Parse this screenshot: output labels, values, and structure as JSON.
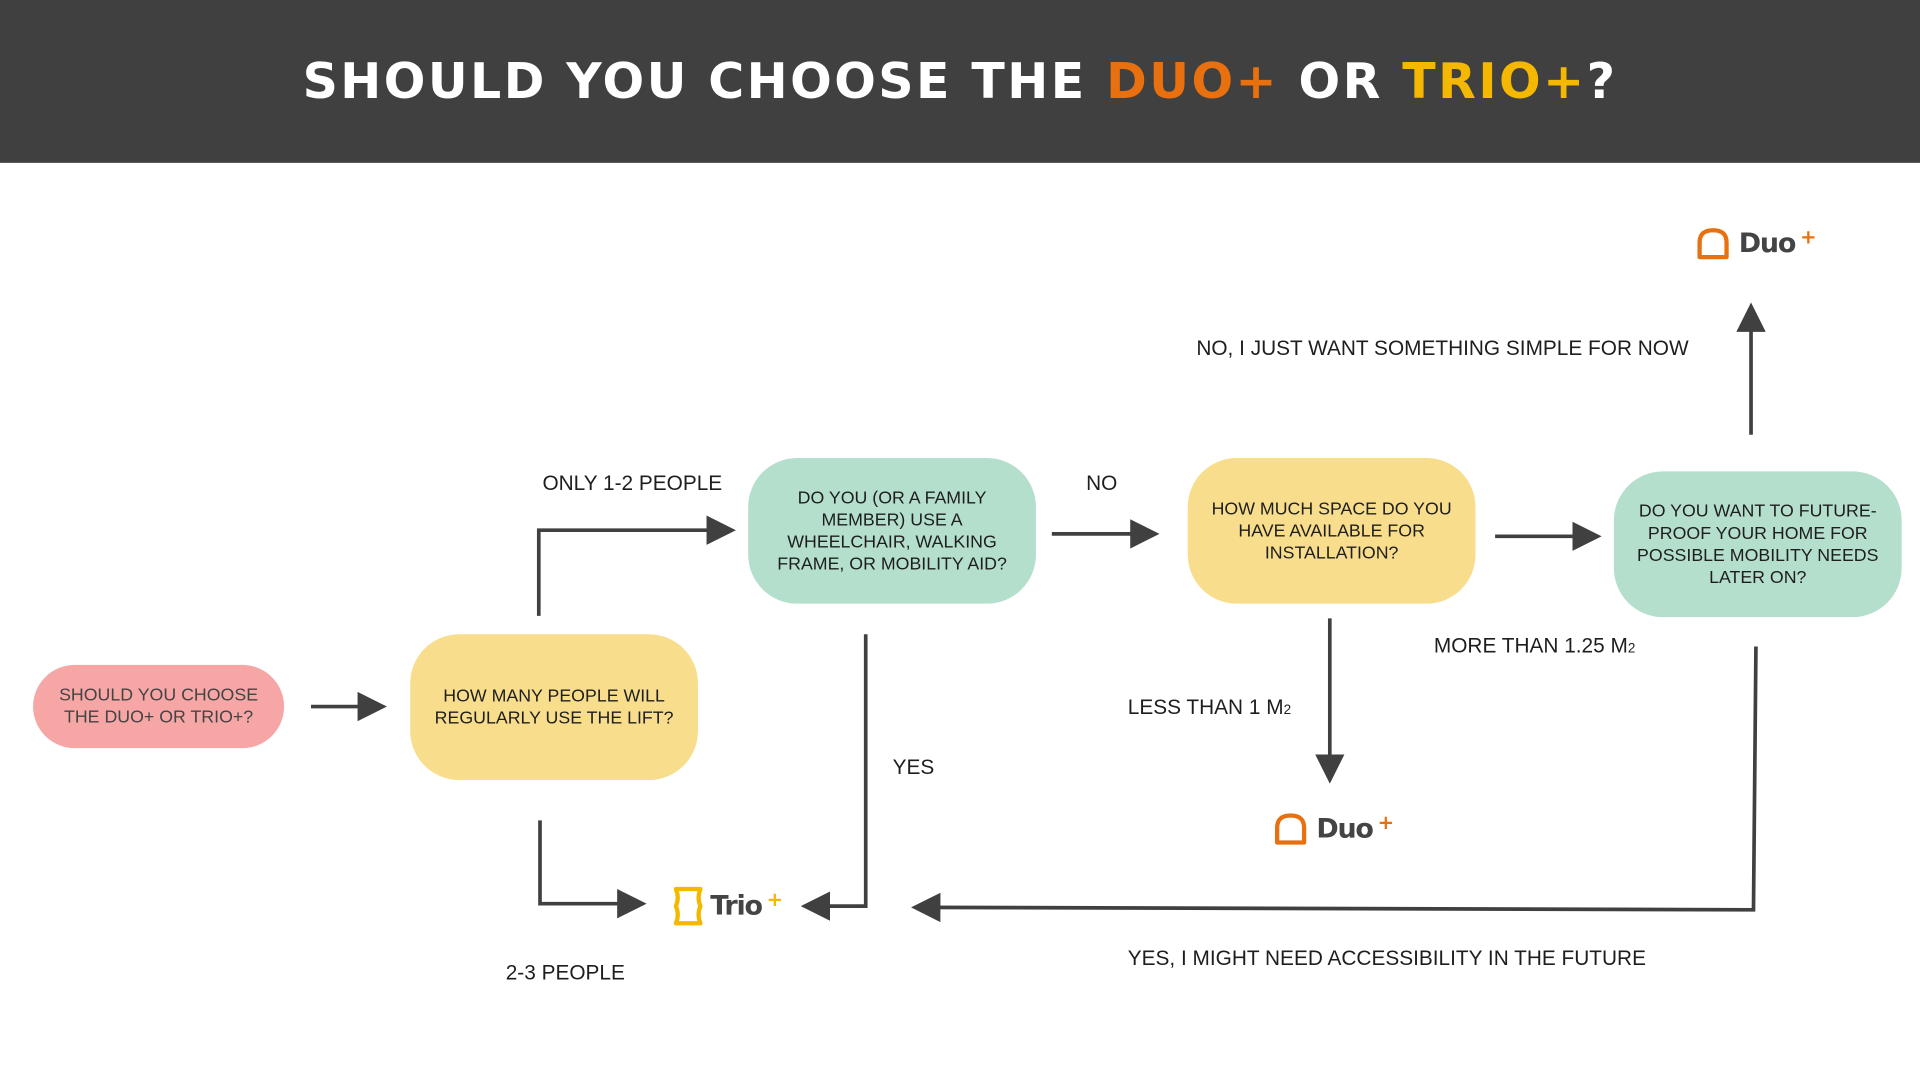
{
  "header": {
    "title_prefix": "SHOULD YOU CHOOSE THE ",
    "duo": "DUO+",
    "or": " OR ",
    "trio": "TRIO+",
    "suffix": "?"
  },
  "colors": {
    "header_bg": "#404040",
    "duo_orange": "#E8700F",
    "trio_yellow": "#F5B800",
    "start_pink": "#F7A6A6",
    "question_yellow": "#F8DE8C",
    "question_green": "#B5DFCD"
  },
  "nodes": {
    "start": "SHOULD YOU CHOOSE THE DUO+ OR TRIO+?",
    "people": "HOW MANY PEOPLE WILL REGULARLY USE THE LIFT?",
    "mobility": "DO YOU (OR A FAMILY MEMBER) USE A WHEELCHAIR, WALKING FRAME, OR MOBILITY AID?",
    "space": "HOW MUCH SPACE DO YOU HAVE AVAILABLE FOR INSTALLATION?",
    "future": "DO YOU WANT TO FUTURE-PROOF YOUR HOME FOR POSSIBLE MOBILITY NEEDS LATER ON?"
  },
  "labels": {
    "one_two": "ONLY 1-2 PEOPLE",
    "two_three": "2-3 PEOPLE",
    "no": "NO",
    "yes": "YES",
    "simple": "NO, I JUST WANT SOMETHING SIMPLE FOR NOW",
    "more_than": "MORE THAN 1.25 M",
    "less_than": "LESS THAN 1 M",
    "sq": "2",
    "future_yes": "YES, I MIGHT NEED ACCESSIBILITY IN THE FUTURE"
  },
  "logos": {
    "duo": "Duo",
    "trio": "Trio",
    "plus": "+"
  }
}
